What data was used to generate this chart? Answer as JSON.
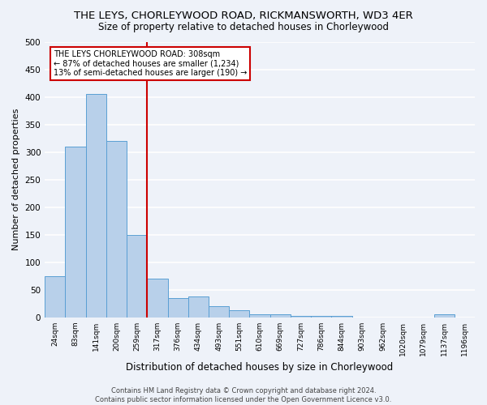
{
  "title_line1": "THE LEYS, CHORLEYWOOD ROAD, RICKMANSWORTH, WD3 4ER",
  "title_line2": "Size of property relative to detached houses in Chorleywood",
  "xlabel": "Distribution of detached houses by size in Chorleywood",
  "ylabel": "Number of detached properties",
  "bar_labels": [
    "24sqm",
    "83sqm",
    "141sqm",
    "200sqm",
    "259sqm",
    "317sqm",
    "376sqm",
    "434sqm",
    "493sqm",
    "551sqm",
    "610sqm",
    "669sqm",
    "727sqm",
    "786sqm",
    "844sqm",
    "903sqm",
    "962sqm",
    "1020sqm",
    "1079sqm",
    "1137sqm",
    "1196sqm"
  ],
  "bar_values": [
    75,
    310,
    405,
    320,
    150,
    70,
    35,
    38,
    20,
    13,
    6,
    5,
    3,
    2,
    2,
    0,
    0,
    0,
    0,
    5,
    0
  ],
  "bar_color": "#b8d0ea",
  "bar_edge_color": "#5a9fd4",
  "vline_index": 5,
  "vline_color": "#cc0000",
  "annotation_text": "THE LEYS CHORLEYWOOD ROAD: 308sqm\n← 87% of detached houses are smaller (1,234)\n13% of semi-detached houses are larger (190) →",
  "annotation_box_color": "#ffffff",
  "annotation_box_edge": "#cc0000",
  "ylim": [
    0,
    500
  ],
  "yticks": [
    0,
    50,
    100,
    150,
    200,
    250,
    300,
    350,
    400,
    450,
    500
  ],
  "footnote": "Contains HM Land Registry data © Crown copyright and database right 2024.\nContains public sector information licensed under the Open Government Licence v3.0.",
  "background_color": "#eef2f9",
  "grid_color": "#ffffff",
  "title_fontsize": 9.5,
  "subtitle_fontsize": 8.5
}
